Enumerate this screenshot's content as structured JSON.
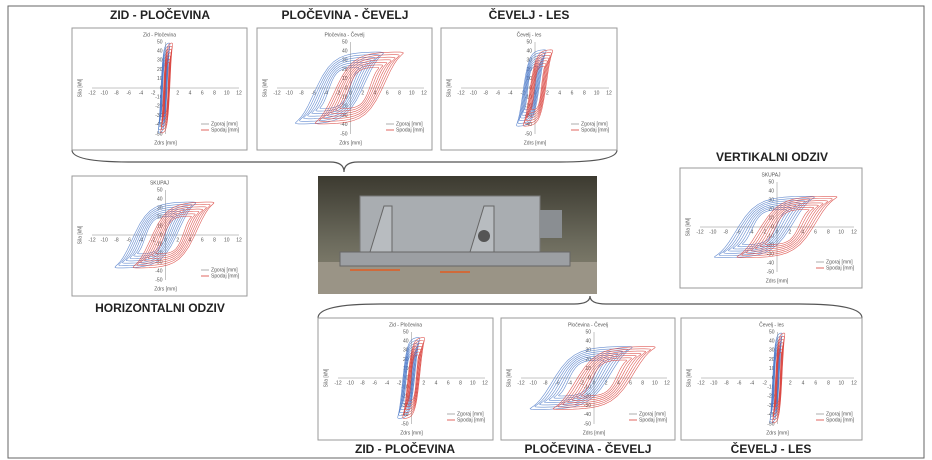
{
  "headings": {
    "top": [
      "ZID - PLOČEVINA",
      "PLOČEVINA - ČEVELJ",
      "ČEVELJ - LES"
    ],
    "horizontal": "HORIZONTALNI ODZIV",
    "vertical": "VERTIKALNI ODZIV",
    "bottom": [
      "ZID - PLOČEVINA",
      "PLOČEVINA - ČEVELJ",
      "ČEVELJ - LES"
    ]
  },
  "panels": [
    {
      "title": "Zid - Pločevina",
      "y_label": "Sila [kN]",
      "x_label": "Zdrs [mm]",
      "legend": [
        "Zgoraj [mm]",
        "Spodaj [mm]"
      ]
    },
    {
      "title": "Pločevina - Čevelj",
      "y_label": "Sila [kN]",
      "x_label": "Zdrs [mm]",
      "legend": [
        "Zgoraj [mm]",
        "Spodaj [mm]"
      ]
    },
    {
      "title": "Čevelj - les",
      "y_label": "Sila [kN]",
      "x_label": "Zdrs [mm]",
      "legend": [
        "Zgoraj [mm]",
        "Spodaj [mm]"
      ]
    },
    {
      "title": "SKUPAJ",
      "y_label": "Sila [kN]",
      "x_label": "Zdrs [mm]",
      "legend": [
        "Zgoraj [mm]",
        "Spodaj [mm]"
      ]
    },
    {
      "title": "SKUPAJ",
      "y_label": "Sila [kN]",
      "x_label": "Zdrs [mm]",
      "legend": [
        "Zgoraj [mm]",
        "Spodaj [mm]"
      ]
    },
    {
      "title": "Zid - Pločevina",
      "y_label": "Sila [kN]",
      "x_label": "Zdrs [mm]",
      "legend": [
        "Zgoraj [mm]",
        "Spodaj [mm]"
      ]
    },
    {
      "title": "Pločevina - Čevelj",
      "y_label": "Sila [kN]",
      "x_label": "Zdrs [mm]",
      "legend": [
        "Zgoraj [mm]",
        "Spodaj [mm]"
      ]
    },
    {
      "title": "Čevelj - les",
      "y_label": "Sila [kN]",
      "x_label": "Zdrs [mm]",
      "legend": [
        "Zgoraj [mm]",
        "Spodaj [mm]"
      ]
    }
  ],
  "xticks": [
    -12,
    -10,
    -8,
    -6,
    -4,
    -2,
    0,
    2,
    4,
    6,
    8,
    10,
    12
  ],
  "yticks": [
    50,
    40,
    30,
    20,
    10,
    0,
    -10,
    -20,
    -30,
    -40,
    -50
  ]
}
